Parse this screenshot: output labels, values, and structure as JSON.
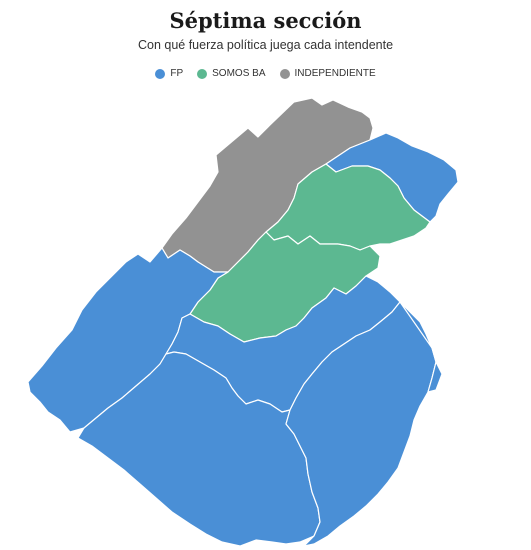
{
  "header": {
    "title": "Séptima sección",
    "subtitle": "Con qué fuerza política juega cada intendente"
  },
  "legend": [
    {
      "label": "FP",
      "color": "#4a8fd6"
    },
    {
      "label": "SOMOS BA",
      "color": "#5cb891"
    },
    {
      "label": "INDEPENDIENTE",
      "color": "#929292"
    }
  ],
  "colors": {
    "fp": "#4a8fd6",
    "somos_ba": "#5cb891",
    "independiente": "#929292"
  }
}
